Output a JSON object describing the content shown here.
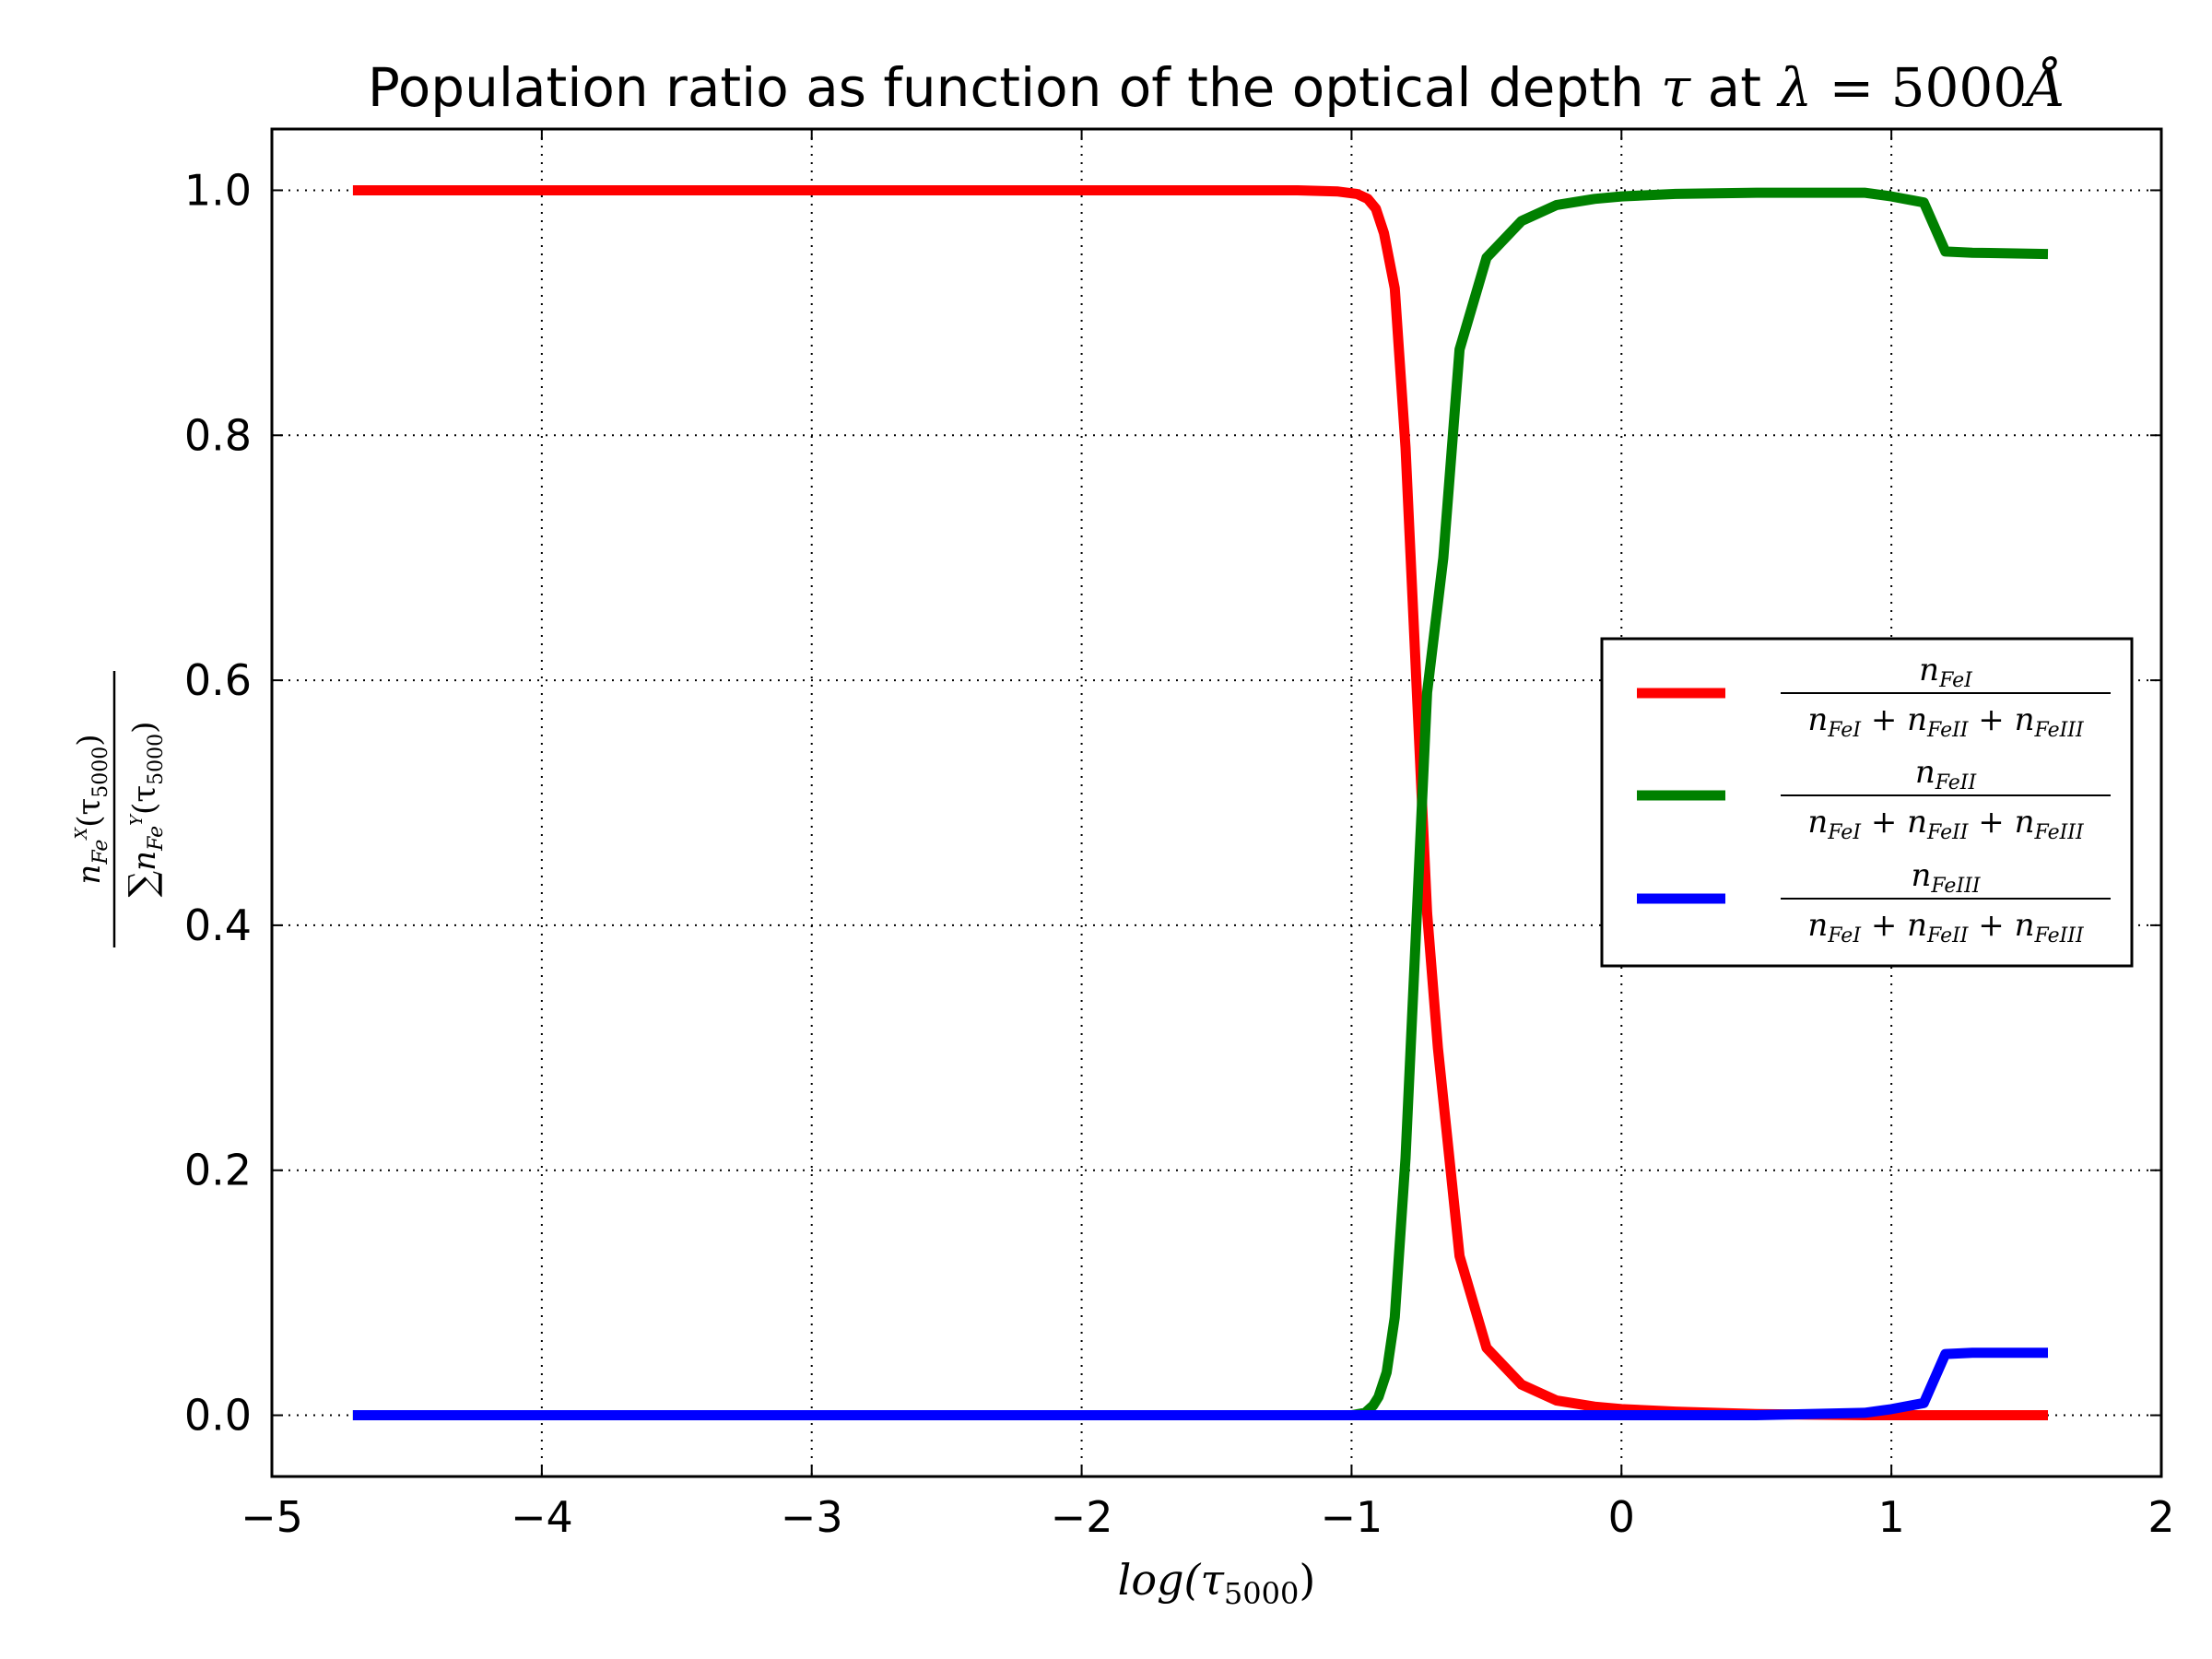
{
  "chart_data": {
    "type": "line",
    "title": {
      "prefix": "Population ratio as function of the optical depth ",
      "tau": "τ",
      "mid": " at ",
      "lambda": "λ",
      "eq": " = 5000",
      "unit": "Å"
    },
    "xlabel": {
      "main": "log(τ",
      "sub": "5000",
      "close": ")"
    },
    "ylabel": {
      "num": "n",
      "num_sub": "Fe",
      "num_sup": "X",
      "num_arg": "(τ",
      "num_arg_sub": "5000",
      "num_arg_close": ")",
      "den_sum": "∑",
      "den": "n",
      "den_sub": "Fe",
      "den_sup": "Y",
      "den_arg": "(τ",
      "den_arg_sub": "5000",
      "den_arg_close": ")"
    },
    "xlim": [
      -5,
      2
    ],
    "ylim": [
      -0.05,
      1.05
    ],
    "xticks": [
      -5,
      -4,
      -3,
      -2,
      -1,
      0,
      1,
      2
    ],
    "xtick_labels": [
      "−5",
      "−4",
      "−3",
      "−2",
      "−1",
      "0",
      "1",
      "2"
    ],
    "yticks": [
      0.0,
      0.2,
      0.4,
      0.6,
      0.8,
      1.0
    ],
    "ytick_labels": [
      "0.0",
      "0.2",
      "0.4",
      "0.6",
      "0.8",
      "1.0"
    ],
    "grid": true,
    "legend_position": "center-right",
    "series": [
      {
        "name": "n_FeI / (n_FeI + n_FeII + n_FeIII)",
        "legend": {
          "num": "n",
          "num_sub": "FeI",
          "den": [
            [
              "n",
              "FeI"
            ],
            [
              "n",
              "FeII"
            ],
            [
              "n",
              "FeIII"
            ]
          ]
        },
        "color": "#ff0000",
        "x": [
          -4.7,
          -4.0,
          -3.0,
          -2.0,
          -1.2,
          -1.05,
          -0.98,
          -0.94,
          -0.91,
          -0.88,
          -0.84,
          -0.8,
          -0.76,
          -0.72,
          -0.68,
          -0.6,
          -0.5,
          -0.37,
          -0.24,
          -0.1,
          0.0,
          0.2,
          0.5,
          0.9,
          1.1,
          1.22,
          1.3,
          1.58
        ],
        "y": [
          1.0,
          1.0,
          1.0,
          1.0,
          1.0,
          0.999,
          0.997,
          0.993,
          0.985,
          0.965,
          0.92,
          0.79,
          0.6,
          0.41,
          0.3,
          0.13,
          0.055,
          0.025,
          0.012,
          0.007,
          0.005,
          0.003,
          0.001,
          0.0,
          0.0,
          0.0,
          0.0,
          0.0
        ]
      },
      {
        "name": "n_FeII / (n_FeI + n_FeII + n_FeIII)",
        "legend": {
          "num": "n",
          "num_sub": "FeII",
          "den": [
            [
              "n",
              "FeI"
            ],
            [
              "n",
              "FeII"
            ],
            [
              "n",
              "FeIII"
            ]
          ]
        },
        "color": "#008000",
        "x": [
          -4.7,
          -4.0,
          -3.0,
          -2.0,
          -1.2,
          -1.0,
          -0.95,
          -0.92,
          -0.9,
          -0.87,
          -0.84,
          -0.8,
          -0.76,
          -0.72,
          -0.66,
          -0.6,
          -0.5,
          -0.37,
          -0.24,
          -0.1,
          0.0,
          0.2,
          0.5,
          0.9,
          1.0,
          1.12,
          1.2,
          1.3,
          1.58
        ],
        "y": [
          0.0,
          0.0,
          0.0,
          0.0,
          0.0,
          0.0,
          0.002,
          0.008,
          0.015,
          0.035,
          0.08,
          0.21,
          0.4,
          0.59,
          0.7,
          0.87,
          0.945,
          0.975,
          0.988,
          0.993,
          0.995,
          0.997,
          0.998,
          0.998,
          0.995,
          0.99,
          0.95,
          0.949,
          0.948
        ]
      },
      {
        "name": "n_FeIII / (n_FeI + n_FeII + n_FeIII)",
        "legend": {
          "num": "n",
          "num_sub": "FeIII",
          "den": [
            [
              "n",
              "FeI"
            ],
            [
              "n",
              "FeII"
            ],
            [
              "n",
              "FeIII"
            ]
          ]
        },
        "color": "#0000ff",
        "x": [
          -4.7,
          -4.0,
          -3.0,
          -2.0,
          -1.0,
          0.0,
          0.5,
          0.9,
          1.0,
          1.12,
          1.2,
          1.3,
          1.58
        ],
        "y": [
          0.0,
          0.0,
          0.0,
          0.0,
          0.0,
          0.0,
          0.0,
          0.002,
          0.005,
          0.01,
          0.05,
          0.051,
          0.051
        ]
      }
    ]
  }
}
